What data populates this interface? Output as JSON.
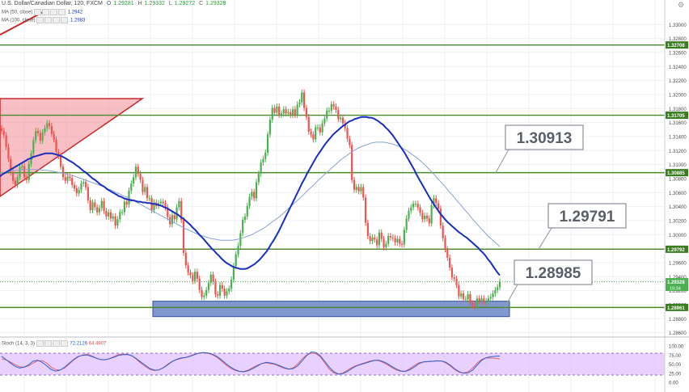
{
  "header": {
    "symbol": "U.S. Dollar/Canadian Dollar, 120, FXCM",
    "ohlc": [
      {
        "k": "O",
        "v": "1.29281"
      },
      {
        "k": "H",
        "v": "1.29332"
      },
      {
        "k": "L",
        "v": "1.29272"
      },
      {
        "k": "C",
        "v": "1.29328"
      }
    ]
  },
  "indicators": [
    {
      "label": "MA (50, close)",
      "value": "1.2942"
    },
    {
      "label": "MA (100, close)",
      "value": "1.2983"
    }
  ],
  "stoch": {
    "label": "Stoch (14, 3, 3)",
    "k": "72.2126",
    "d": "64.4907"
  },
  "colors": {
    "up": "#4caf50",
    "down": "#ef5350",
    "ma50": "#1a2fbf",
    "ma100": "#8aa3d0",
    "hline": "#4a8a2a",
    "support_zone": "#6a86c6",
    "triangle": "#f28b94",
    "stoch_bg": "#d9b3ff",
    "price_label": "#3a7d1e"
  },
  "chart_data": {
    "type": "candlestick",
    "ylim": [
      1.2855,
      1.3335
    ],
    "y_ticks": [
      "1.33000",
      "1.32800",
      "1.32600",
      "1.32400",
      "1.32200",
      "1.32000",
      "1.31800",
      "1.31600",
      "1.31400",
      "1.31200",
      "1.31000",
      "1.30800",
      "1.30600",
      "1.30400",
      "1.30200",
      "1.30000",
      "1.29800",
      "1.29600",
      "1.29400",
      "1.29200",
      "1.29000",
      "1.28800",
      "1.28600"
    ],
    "y_tick_values": [
      1.33,
      1.328,
      1.326,
      1.324,
      1.322,
      1.32,
      1.318,
      1.316,
      1.314,
      1.312,
      1.31,
      1.308,
      1.306,
      1.304,
      1.302,
      1.3,
      1.298,
      1.296,
      1.294,
      1.292,
      1.29,
      1.288,
      1.286
    ],
    "horizontal_levels": [
      {
        "label": "1.32708",
        "value": 1.32708
      },
      {
        "label": "1.31705",
        "value": 1.31705
      },
      {
        "label": "1.30885",
        "value": 1.30885
      },
      {
        "label": "1.29792",
        "value": 1.29792
      },
      {
        "label": "1.28961",
        "value": 1.28961
      }
    ],
    "current_price": {
      "label": "1.29328",
      "value": 1.29328,
      "countdown": "19:34"
    },
    "callouts": [
      {
        "text": "1.30913",
        "level": 1.30885
      },
      {
        "text": "1.29791",
        "level": 1.29792
      },
      {
        "text": "1.28985",
        "level": 1.28961
      }
    ],
    "support_zone": [
      1.2883,
      1.2905
    ],
    "close_series": [
      1.3148,
      1.3142,
      1.3125,
      1.3108,
      1.3089,
      1.3077,
      1.3071,
      1.3082,
      1.3096,
      1.3098,
      1.3082,
      1.3078,
      1.3101,
      1.3116,
      1.3135,
      1.3148,
      1.3145,
      1.3134,
      1.3146,
      1.3152,
      1.3159,
      1.3155,
      1.3144,
      1.3136,
      1.3118,
      1.3112,
      1.3097,
      1.3082,
      1.3077,
      1.3083,
      1.3081,
      1.3071,
      1.3066,
      1.3059,
      1.3064,
      1.3073,
      1.3075,
      1.3068,
      1.3049,
      1.3035,
      1.3046,
      1.3039,
      1.3032,
      1.3038,
      1.3048,
      1.3034,
      1.3026,
      1.3032,
      1.3023,
      1.3026,
      1.3013,
      1.3022,
      1.3032,
      1.3032,
      1.3047,
      1.3043,
      1.3063,
      1.3073,
      1.3082,
      1.3097,
      1.3087,
      1.3078,
      1.3061,
      1.3068,
      1.3052,
      1.3052,
      1.3035,
      1.3046,
      1.3041,
      1.3045,
      1.3047,
      1.3045,
      1.3039,
      1.3025,
      1.3015,
      1.3028,
      1.3022,
      1.3039,
      1.3048,
      1.3021,
      1.2974,
      1.2956,
      1.2946,
      1.2942,
      1.2934,
      1.2947,
      1.2937,
      1.2921,
      1.2911,
      1.2913,
      1.2921,
      1.2931,
      1.2943,
      1.2933,
      1.2915,
      1.2913,
      1.2928,
      1.2923,
      1.2913,
      1.2919,
      1.2923,
      1.2936,
      1.2955,
      1.2972,
      1.2984,
      1.3002,
      1.3021,
      1.3026,
      1.3041,
      1.3054,
      1.3061,
      1.3052,
      1.3075,
      1.3087,
      1.3103,
      1.3108,
      1.3117,
      1.3143,
      1.3164,
      1.3181,
      1.3174,
      1.3183,
      1.3171,
      1.3173,
      1.3179,
      1.3173,
      1.3175,
      1.3171,
      1.3179,
      1.3171,
      1.3186,
      1.3189,
      1.3203,
      1.3181,
      1.3168,
      1.3147,
      1.3143,
      1.3136,
      1.3153,
      1.3153,
      1.3146,
      1.3159,
      1.3166,
      1.3177,
      1.3177,
      1.3186,
      1.3183,
      1.3178,
      1.3165,
      1.3167,
      1.3159,
      1.3152,
      1.3137,
      1.3128,
      1.3078,
      1.3064,
      1.3068,
      1.3062,
      1.3068,
      1.3053,
      1.3017,
      1.2998,
      1.2991,
      1.2996,
      1.2993,
      1.2985,
      1.3003,
      1.2994,
      1.2982,
      1.2987,
      1.2998,
      1.2996,
      1.2995,
      1.2989,
      1.2994,
      1.2987,
      1.2986,
      1.3007,
      1.3023,
      1.3034,
      1.3039,
      1.3044,
      1.3044,
      1.3039,
      1.3031,
      1.3022,
      1.3027,
      1.3023,
      1.3016,
      1.3042,
      1.3052,
      1.3045,
      1.3037,
      1.3013,
      1.2995,
      1.2979,
      1.2967,
      1.2953,
      1.2939,
      1.2937,
      1.2928,
      1.2912,
      1.2916,
      1.2908,
      1.2908,
      1.2915,
      1.2902,
      1.2899,
      1.2897,
      1.2909,
      1.2905,
      1.2909,
      1.2903,
      1.2905,
      1.2909,
      1.2911,
      1.2916,
      1.2921,
      1.2925,
      1.2933
    ],
    "ma50_series": [
      1.3083,
      1.3086,
      1.3088,
      1.309,
      1.3092,
      1.3094,
      1.3096,
      1.3098,
      1.31,
      1.3102,
      1.3104,
      1.3106,
      1.3108,
      1.3109,
      1.3111,
      1.3112,
      1.3113,
      1.3114,
      1.3115,
      1.3116,
      1.3116,
      1.3116,
      1.3116,
      1.3115,
      1.3114,
      1.3113,
      1.3112,
      1.311,
      1.3108,
      1.3106,
      1.3104,
      1.3102,
      1.3099,
      1.3097,
      1.3094,
      1.3091,
      1.3089,
      1.3086,
      1.3083,
      1.308,
      1.3078,
      1.3075,
      1.3072,
      1.307,
      1.3068,
      1.3065,
      1.3063,
      1.3061,
      1.3059,
      1.3057,
      1.3055,
      1.3054,
      1.3052,
      1.3051,
      1.305,
      1.3049,
      1.3049,
      1.3048,
      1.3047,
      1.3047,
      1.3046,
      1.3046,
      1.3045,
      1.3045,
      1.3044,
      1.3044,
      1.3043,
      1.3042,
      1.3041,
      1.3039,
      1.3038,
      1.3036,
      1.3034,
      1.3032,
      1.303,
      1.3028,
      1.3025,
      1.3023,
      1.302,
      1.3017,
      1.3014,
      1.301,
      1.3007,
      1.3003,
      1.2999,
      1.2996,
      1.2992,
      1.2988,
      1.2984,
      1.298,
      1.2977,
      1.2973,
      1.297,
      1.2966,
      1.2963,
      1.296,
      1.2958,
      1.2956,
      1.2954,
      1.2953,
      1.2952,
      1.2951,
      1.2951,
      1.2951,
      1.2952,
      1.2954,
      1.2956,
      1.2958,
      1.2961,
      1.2964,
      1.2968,
      1.2972,
      1.2976,
      1.2981,
      1.2987,
      1.2992,
      1.2998,
      1.3004,
      1.3011,
      1.3018,
      1.3025,
      1.3032,
      1.3039,
      1.3046,
      1.3053,
      1.306,
      1.3067,
      1.3074,
      1.308,
      1.3087,
      1.3093,
      1.3099,
      1.3105,
      1.3111,
      1.3116,
      1.3121,
      1.3126,
      1.3131,
      1.3135,
      1.3139,
      1.3143,
      1.3146,
      1.3149,
      1.3152,
      1.3155,
      1.3157,
      1.316,
      1.3162,
      1.3163,
      1.3165,
      1.3166,
      1.3167,
      1.3168,
      1.3168,
      1.3168,
      1.3167,
      1.3167,
      1.3166,
      1.3164,
      1.3162,
      1.3159,
      1.3157,
      1.3153,
      1.315,
      1.3146,
      1.3142,
      1.3137,
      1.3132,
      1.3127,
      1.3122,
      1.3117,
      1.3111,
      1.3105,
      1.3099,
      1.3093,
      1.3086,
      1.308,
      1.3074,
      1.3068,
      1.3062,
      1.3056,
      1.305,
      1.3045,
      1.304,
      1.3035,
      1.303,
      1.3026,
      1.3022,
      1.3018,
      1.3015,
      1.3012,
      1.3009,
      1.3006,
      1.3003,
      1.3001,
      1.2998,
      1.2996,
      1.2993,
      1.299,
      1.2987,
      1.2984,
      1.2981,
      1.2977,
      1.2974,
      1.297,
      1.2965,
      1.2961,
      1.2956,
      1.2951,
      1.2946,
      1.2942
    ],
    "ma100_series": [
      1.3088,
      1.3089,
      1.309,
      1.3091,
      1.3092,
      1.3092,
      1.3093,
      1.3093,
      1.3093,
      1.3093,
      1.3093,
      1.3092,
      1.3092,
      1.3091,
      1.309,
      1.3089,
      1.3088,
      1.3087,
      1.3085,
      1.3084,
      1.3082,
      1.308,
      1.3078,
      1.3076,
      1.3074,
      1.3072,
      1.307,
      1.3068,
      1.3065,
      1.3063,
      1.306,
      1.3058,
      1.3055,
      1.3053,
      1.305,
      1.3047,
      1.3044,
      1.3041,
      1.3038,
      1.3035,
      1.3032,
      1.3029,
      1.3026,
      1.3023,
      1.302,
      1.3017,
      1.3014,
      1.3011,
      1.3008,
      1.3006,
      1.3003,
      1.3001,
      1.2999,
      1.2997,
      1.2995,
      1.2994,
      1.2993,
      1.2992,
      1.2992,
      1.2992,
      1.2992,
      1.2993,
      1.2994,
      1.2996,
      1.2998,
      1.3,
      1.3003,
      1.3006,
      1.3009,
      1.3013,
      1.3017,
      1.3021,
      1.3025,
      1.303,
      1.3035,
      1.304,
      1.3045,
      1.305,
      1.3055,
      1.3061,
      1.3066,
      1.3071,
      1.3077,
      1.3082,
      1.3087,
      1.3092,
      1.3097,
      1.3102,
      1.3107,
      1.3111,
      1.3115,
      1.3119,
      1.3122,
      1.3125,
      1.3127,
      1.3129,
      1.3131,
      1.3132,
      1.3132,
      1.3132,
      1.3131,
      1.313,
      1.3128,
      1.3126,
      1.3123,
      1.312,
      1.3116,
      1.3112,
      1.3108,
      1.3103,
      1.3098,
      1.3092,
      1.3086,
      1.308,
      1.3074,
      1.3068,
      1.3061,
      1.3055,
      1.3048,
      1.3042,
      1.3035,
      1.3029,
      1.3022,
      1.3016,
      1.301,
      1.3004,
      1.2998,
      1.2993,
      1.2988,
      1.2983
    ],
    "stoch_k": [
      71.6,
      62.3,
      52.6,
      44.1,
      39.3,
      41.5,
      47.9,
      57.7,
      60.9,
      55.2,
      45.7,
      35.5,
      30.8,
      33.4,
      40.9,
      51.7,
      62.3,
      70.6,
      74.1,
      75.2,
      71.3,
      66.8,
      62.7,
      61.9,
      64.6,
      68.9,
      73.7,
      75.7,
      76.5,
      73.0,
      65.1,
      55.9,
      46.9,
      38.1,
      33.5,
      34.0,
      39.6,
      47.8,
      57.1,
      63.0,
      66.8,
      68.1,
      71.5,
      76.1,
      80.4,
      81.9,
      80.7,
      77.2,
      70.8,
      61.7,
      51.2,
      41.9,
      34.6,
      30.0,
      28.8,
      32.1,
      38.1,
      44.8,
      51.7,
      54.9,
      53.1,
      50.5,
      45.3,
      40.0,
      36.5,
      37.8,
      45.6,
      59.6,
      74.0,
      83.3,
      82.1,
      72.9,
      57.8,
      41.7,
      29.3,
      22.9,
      23.9,
      29.3,
      37.5,
      44.6,
      48.9,
      52.4,
      56.4,
      60.0,
      60.9,
      56.8,
      50.8,
      43.2,
      35.9,
      30.8,
      30.1,
      34.6,
      42.5,
      51.3,
      55.9,
      57.1,
      57.7,
      58.6,
      58.6,
      55.2,
      46.9,
      36.7,
      28.8,
      24.9,
      26.3,
      34.1,
      48.0,
      60.6,
      67.8,
      69.9,
      71.8,
      72.2
    ],
    "stoch_d": [
      64.5,
      61.7,
      55.6,
      48.6,
      42.9,
      41.3,
      45.1,
      52.3,
      59.0,
      59.5,
      53.5,
      42.1,
      35.1,
      33.8,
      39.0,
      49.5,
      60.6,
      69.3,
      74.8,
      77.1,
      73.2,
      67.2,
      62.6,
      61.8,
      64.8,
      70.5,
      75.9,
      77.2,
      77.3,
      73.0,
      63.9,
      53.2,
      43.5,
      35.8,
      32.3,
      34.0,
      40.3,
      49.4,
      57.6,
      62.2,
      65.6,
      68.4,
      72.4,
      77.0,
      80.3,
      81.2,
      79.6,
      75.6,
      68.5,
      58.2,
      47.5,
      38.6,
      32.8,
      29.7,
      29.8,
      34.1,
      40.7,
      47.1,
      51.7,
      53.3,
      51.2,
      48.8,
      43.1,
      38.2,
      36.1,
      40.0,
      51.2,
      64.8,
      75.4,
      80.2,
      78.9,
      70.2,
      53.5,
      36.4,
      26.0,
      22.2,
      25.1,
      32.9,
      40.6,
      46.0,
      50.0,
      54.1,
      58.3,
      60.6,
      59.5,
      54.3,
      48.1,
      40.3,
      33.5,
      30.2,
      30.9,
      38.1,
      46.5,
      53.5,
      56.0,
      56.4,
      57.6,
      59.0,
      58.5,
      53.0,
      44.4,
      34.7,
      27.3,
      25.7,
      29.5,
      40.1,
      53.1,
      63.1,
      67.4,
      66.7,
      66.2,
      64.5
    ],
    "stoch_ylim": [
      0,
      100
    ],
    "stoch_ticks": [
      "100.00",
      "75.00",
      "50.00",
      "25.00",
      "0.00"
    ],
    "stoch_tick_values": [
      100,
      75,
      50,
      25,
      0
    ],
    "stoch_bands": [
      80,
      20
    ]
  }
}
